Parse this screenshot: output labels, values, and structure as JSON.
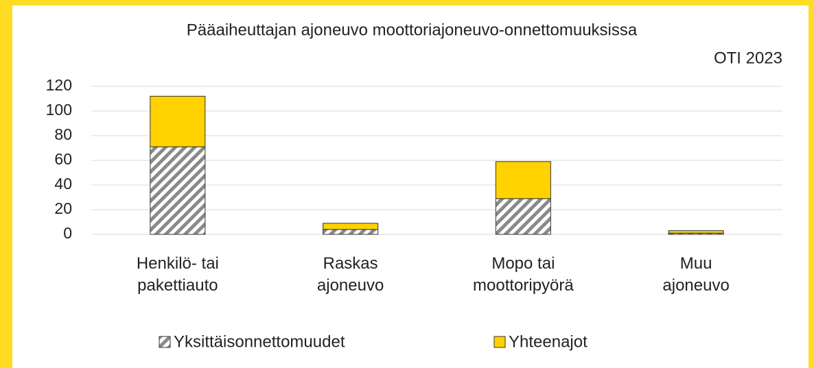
{
  "chart_data": {
    "type": "stacked_bar",
    "title": "Pääaiheuttajan ajoneuvo moottoriajoneuvo-onnettomuuksissa",
    "subtitle": "OTI 2023",
    "categories": [
      "Henkilö- tai\npakettiauto",
      "Raskas\najoneuvo",
      "Mopo tai\nmoottoripyörä",
      "Muu\najoneuvo"
    ],
    "series": [
      {
        "name": "Yksittäisonnettomuudet",
        "color": "#8a8a8a",
        "pattern": "diagonal-hatch",
        "values": [
          71,
          4,
          29,
          1
        ]
      },
      {
        "name": "Yhteenajot",
        "color": "#ffd200",
        "values": [
          41,
          5,
          30,
          2
        ]
      }
    ],
    "ylim": [
      0,
      120
    ],
    "yticks": [
      0,
      20,
      40,
      60,
      80,
      100,
      120
    ],
    "grid": true,
    "legend": "bottom"
  }
}
